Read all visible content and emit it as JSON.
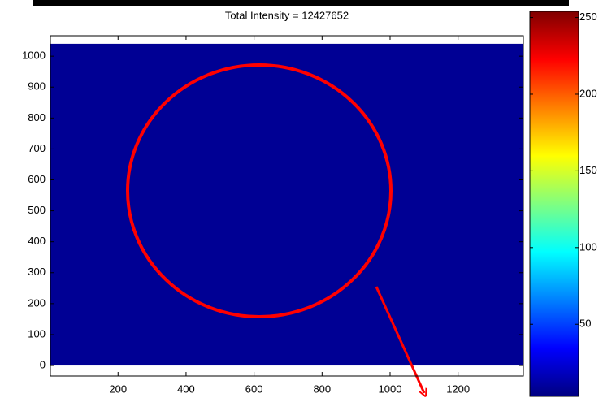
{
  "chart_data": {
    "type": "image",
    "title": "Total Intensity = 12427652",
    "x": [
      0,
      1392
    ],
    "y": [
      0,
      1040
    ],
    "values": [
      [
        8
      ]
    ],
    "colormap": "jet",
    "xlim": [
      1,
      1392
    ],
    "ylim": [
      -34,
      1066
    ],
    "xticks": [
      200,
      400,
      600,
      800,
      1000,
      1200
    ],
    "yticks": [
      0,
      100,
      200,
      300,
      400,
      500,
      600,
      700,
      800,
      900,
      1000
    ],
    "clim": [
      3,
      254
    ],
    "cticks": [
      50,
      100,
      150,
      200,
      250
    ]
  }
}
